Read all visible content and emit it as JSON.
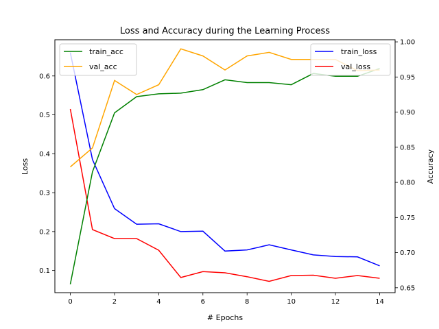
{
  "chart_data": {
    "type": "line",
    "title": "Loss and Accuracy during the Learning Process",
    "xlabel": "# Epochs",
    "ylabel_left": "Loss",
    "ylabel_right": "Accuracy",
    "x": [
      0,
      1,
      2,
      3,
      4,
      5,
      6,
      7,
      8,
      9,
      10,
      11,
      12,
      13,
      14
    ],
    "xlim": [
      -0.7,
      14.7
    ],
    "xticks": [
      0,
      2,
      4,
      6,
      8,
      10,
      12,
      14
    ],
    "ylim_left": [
      0.043,
      0.693
    ],
    "yticks_left": [
      0.1,
      0.2,
      0.3,
      0.4,
      0.5,
      0.6
    ],
    "ylim_right": [
      0.643,
      1.003
    ],
    "yticks_right": [
      0.65,
      0.7,
      0.75,
      0.8,
      0.85,
      0.9,
      0.95,
      1.0
    ],
    "grid": false,
    "series_left": [
      {
        "name": "train_loss",
        "color": "#0000ff",
        "values": [
          0.66,
          0.385,
          0.259,
          0.219,
          0.22,
          0.2,
          0.201,
          0.15,
          0.153,
          0.166,
          0.153,
          0.14,
          0.136,
          0.135,
          0.112
        ]
      },
      {
        "name": "val_loss",
        "color": "#ff0000",
        "values": [
          0.515,
          0.205,
          0.182,
          0.182,
          0.152,
          0.082,
          0.097,
          0.094,
          0.084,
          0.072,
          0.087,
          0.088,
          0.08,
          0.087,
          0.08
        ]
      }
    ],
    "series_right": [
      {
        "name": "train_acc",
        "color": "#008000",
        "values": [
          0.655,
          0.815,
          0.899,
          0.922,
          0.926,
          0.927,
          0.932,
          0.946,
          0.942,
          0.942,
          0.939,
          0.955,
          0.951,
          0.951,
          0.962
        ]
      },
      {
        "name": "val_acc",
        "color": "#ffa500",
        "values": [
          0.822,
          0.849,
          0.945,
          0.925,
          0.939,
          0.99,
          0.98,
          0.96,
          0.98,
          0.985,
          0.975,
          0.975,
          0.975,
          0.959,
          0.96
        ]
      }
    ],
    "legend_left_placement": "upper-left",
    "legend_right_placement": "upper-right"
  }
}
